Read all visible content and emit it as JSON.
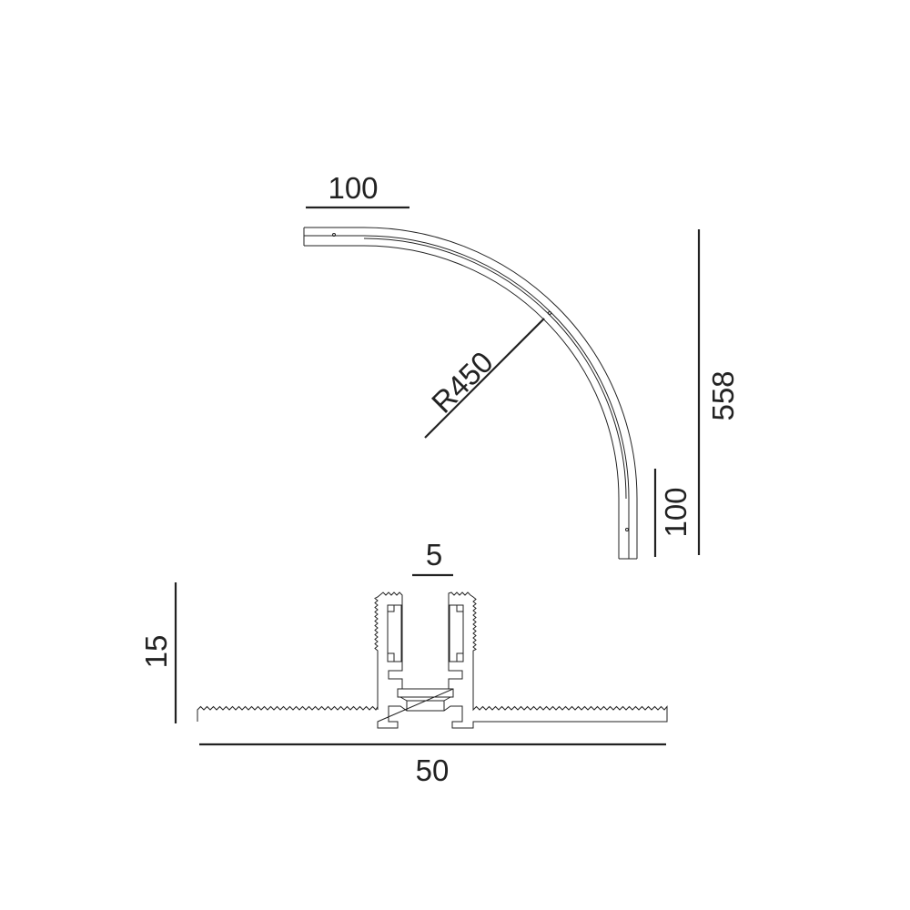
{
  "drawing": {
    "colors": {
      "line": "#222222",
      "background": "#ffffff"
    },
    "curved_track": {
      "straight_top_length": "100",
      "straight_side_length": "100",
      "radius": "R450",
      "overall_height": "558"
    },
    "profile": {
      "slot_width": "5",
      "height": "15",
      "width": "50"
    }
  }
}
